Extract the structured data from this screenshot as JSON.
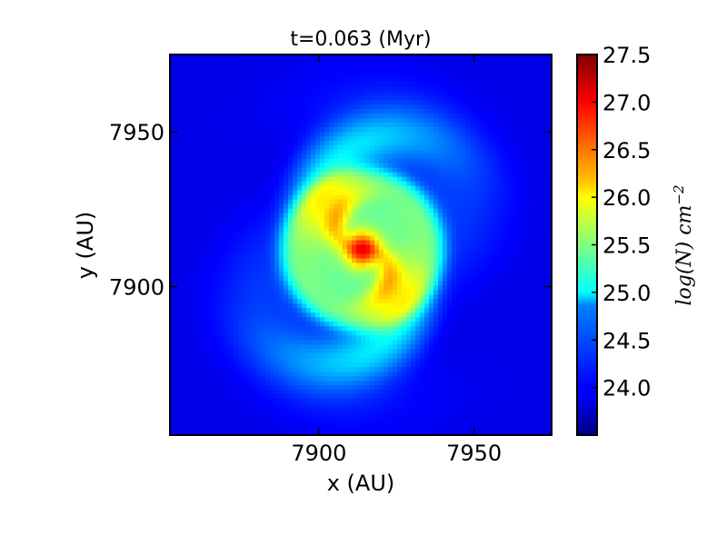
{
  "chart_data": {
    "type": "heatmap",
    "title": "t=0.063 (Myr)",
    "xlabel": "x (AU)",
    "ylabel": "y (AU)",
    "xlim": [
      7852,
      7975
    ],
    "ylim": [
      7852,
      7975
    ],
    "xticks": [
      7900,
      7950
    ],
    "yticks": [
      7900,
      7950
    ],
    "colorbar": {
      "label": "log(N) cm",
      "label_exponent": "−2",
      "colormap": "jet",
      "range": [
        23.5,
        27.5
      ],
      "ticks": [
        "24.0",
        "24.5",
        "25.0",
        "25.5",
        "26.0",
        "26.5",
        "27.0",
        "27.5"
      ]
    },
    "field": {
      "center": [
        7914,
        7912
      ],
      "peak_value": 27.3,
      "disk_value": 25.6,
      "background_value": 23.9,
      "spiral_arms": 2
    },
    "grid": false
  }
}
